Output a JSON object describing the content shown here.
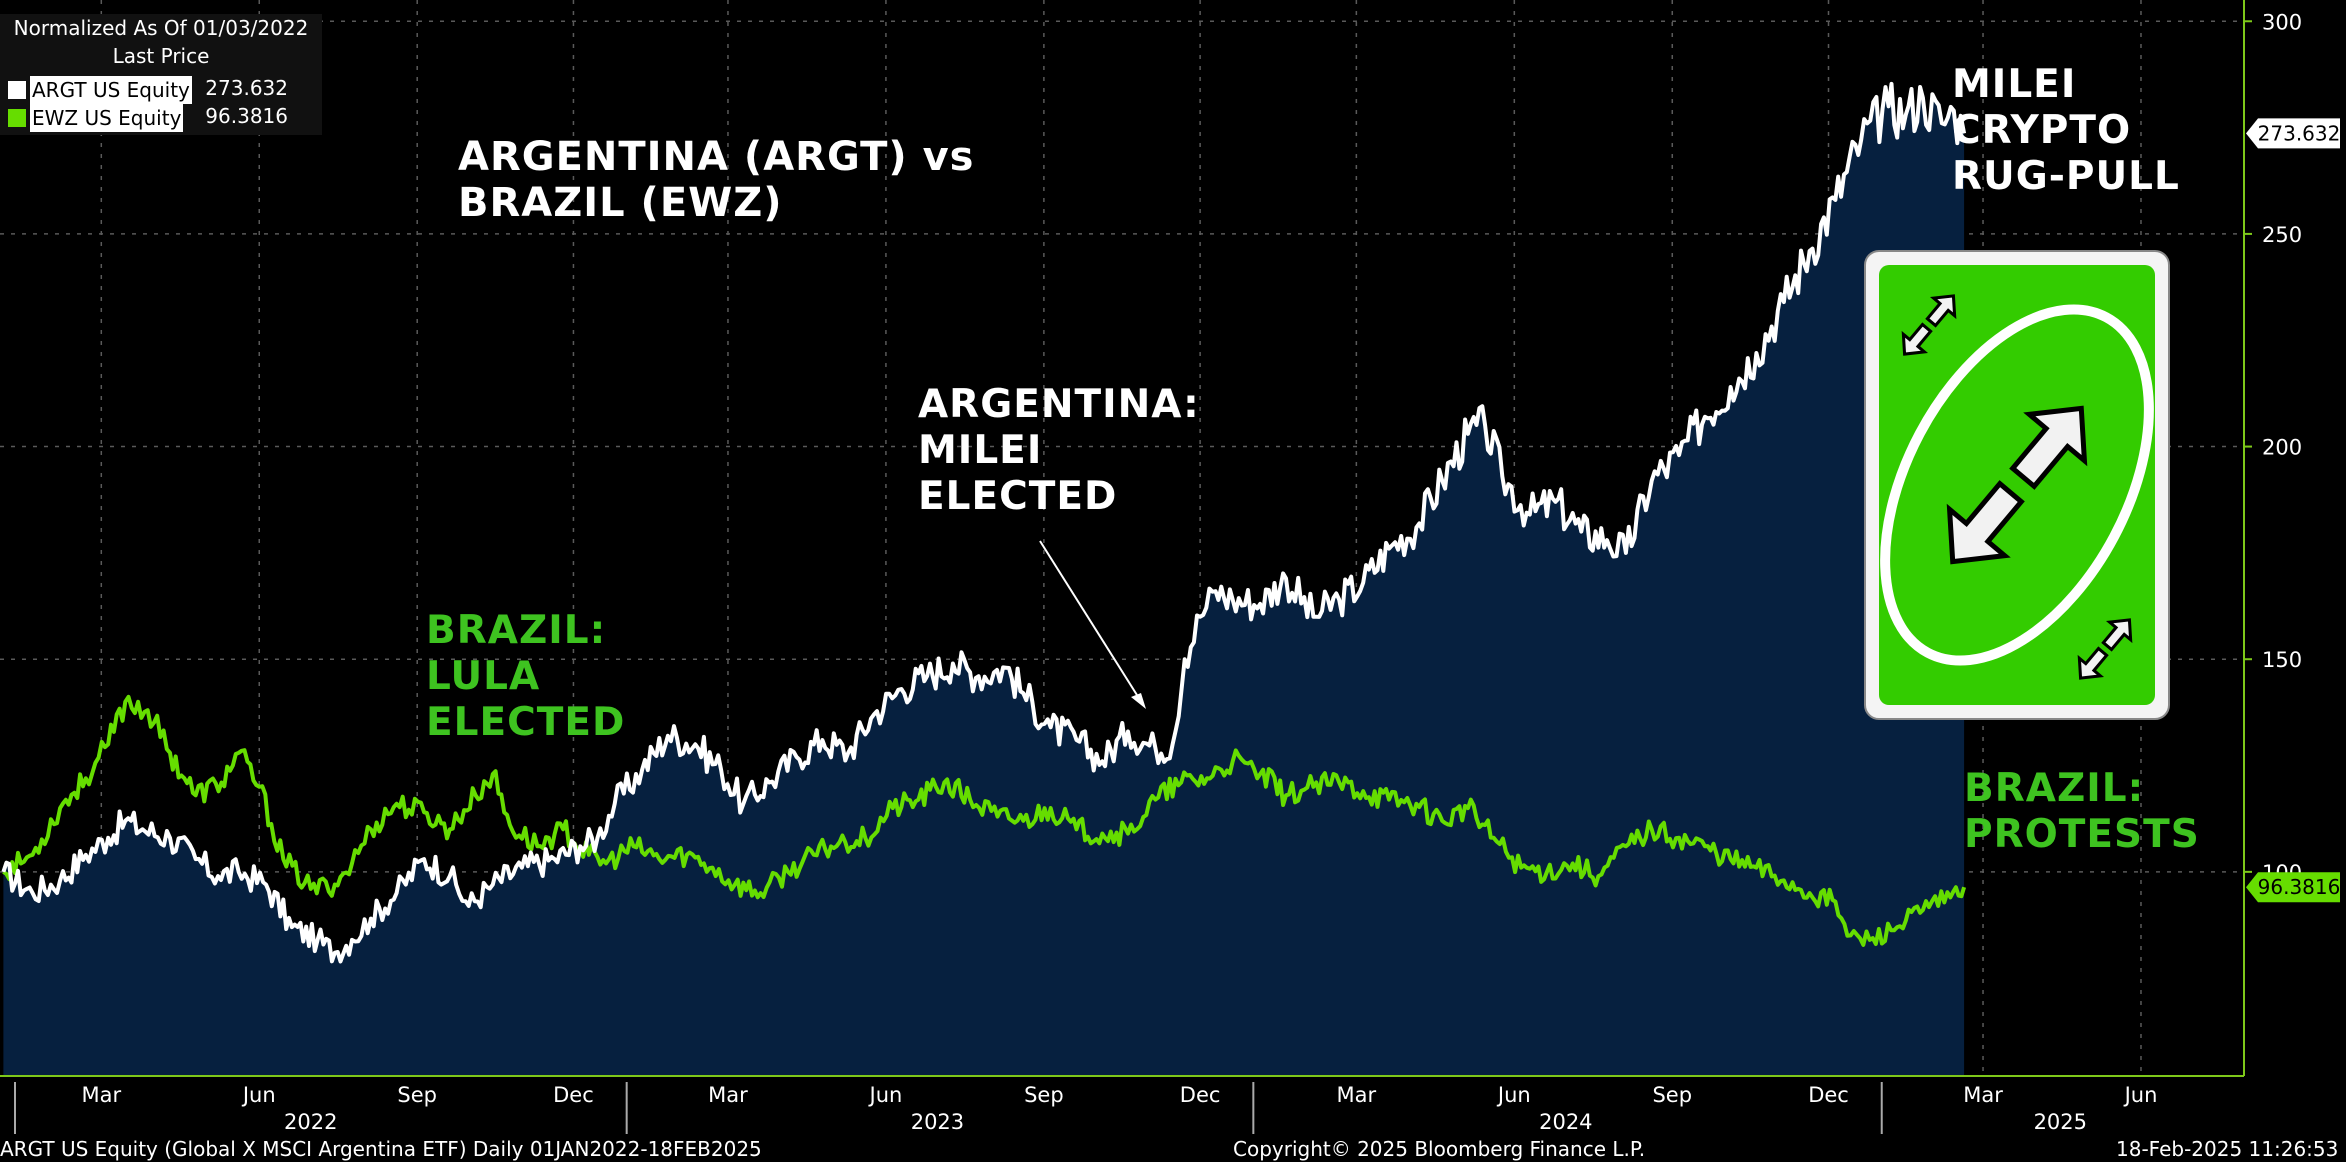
{
  "legend": {
    "header_line1": "Normalized As Of 01/03/2022",
    "header_line2": "Last Price",
    "series": [
      {
        "name": "ARGT US Equity",
        "value": "273.632",
        "color": "#ffffff"
      },
      {
        "name": "EWZ US Equity",
        "value": "96.3816",
        "color": "#66dd00"
      }
    ]
  },
  "title": "ARGENTINA (ARGT) vs\nBRAZIL (EWZ)",
  "annotations": {
    "milei_elected": "ARGENTINA:\nMILEI\nELECTED",
    "lula_elected": "BRAZIL:\nLULA\nELECTED",
    "rug_pull": "MILEI\nCRYPTO\nRUG-PULL",
    "protests": "BRAZIL:\nPROTESTS"
  },
  "card_icon": "uno-reverse-card-icon",
  "footer": {
    "left": "ARGT US Equity (Global X MSCI Argentina ETF)  Daily 01JAN2022-18FEB2025",
    "center": "Copyright© 2025 Bloomberg Finance L.P.",
    "right": "18-Feb-2025 11:26:53"
  },
  "chart_data": {
    "type": "line",
    "ylim": [
      52,
      305
    ],
    "yticks": [
      "300",
      "250",
      "200",
      "150",
      "100"
    ],
    "xlim": [
      "2022-01-01",
      "2025-07-31"
    ],
    "month_ticks": [
      {
        "label": "Mar",
        "date": "2022-03-01"
      },
      {
        "label": "Jun",
        "date": "2022-06-01"
      },
      {
        "label": "Sep",
        "date": "2022-09-01"
      },
      {
        "label": "Dec",
        "date": "2022-12-01"
      },
      {
        "label": "Mar",
        "date": "2023-03-01"
      },
      {
        "label": "Jun",
        "date": "2023-06-01"
      },
      {
        "label": "Sep",
        "date": "2023-09-01"
      },
      {
        "label": "Dec",
        "date": "2023-12-01"
      },
      {
        "label": "Mar",
        "date": "2024-03-01"
      },
      {
        "label": "Jun",
        "date": "2024-06-01"
      },
      {
        "label": "Sep",
        "date": "2024-09-01"
      },
      {
        "label": "Dec",
        "date": "2024-12-01"
      },
      {
        "label": "Mar",
        "date": "2025-03-01"
      },
      {
        "label": "Jun",
        "date": "2025-06-01"
      }
    ],
    "year_labels": [
      {
        "label": "2022",
        "date": "2022-07-01"
      },
      {
        "label": "2023",
        "date": "2023-07-01"
      },
      {
        "label": "2024",
        "date": "2024-07-01"
      },
      {
        "label": "2025",
        "date": "2025-04-15"
      }
    ],
    "last_value_tags": [
      "273.632",
      "96.3816"
    ],
    "series": [
      {
        "name": "ARGT US Equity",
        "color": "#ffffff",
        "area_fill": "#06203f",
        "points": [
          [
            "2022-01-03",
            100
          ],
          [
            "2022-01-20",
            95
          ],
          [
            "2022-02-05",
            98
          ],
          [
            "2022-02-20",
            104
          ],
          [
            "2022-03-05",
            108
          ],
          [
            "2022-03-15",
            112
          ],
          [
            "2022-03-25",
            110
          ],
          [
            "2022-04-10",
            108
          ],
          [
            "2022-04-25",
            103
          ],
          [
            "2022-05-08",
            99
          ],
          [
            "2022-05-20",
            100
          ],
          [
            "2022-06-05",
            97
          ],
          [
            "2022-06-20",
            87
          ],
          [
            "2022-07-05",
            84
          ],
          [
            "2022-07-15",
            81
          ],
          [
            "2022-07-25",
            84
          ],
          [
            "2022-08-05",
            89
          ],
          [
            "2022-08-20",
            95
          ],
          [
            "2022-09-05",
            103
          ],
          [
            "2022-09-20",
            99
          ],
          [
            "2022-10-01",
            92
          ],
          [
            "2022-10-15",
            97
          ],
          [
            "2022-11-01",
            101
          ],
          [
            "2022-11-20",
            103
          ],
          [
            "2022-12-05",
            106
          ],
          [
            "2022-12-15",
            108
          ],
          [
            "2022-12-25",
            116
          ],
          [
            "2023-01-10",
            124
          ],
          [
            "2023-01-25",
            132
          ],
          [
            "2023-02-10",
            130
          ],
          [
            "2023-02-25",
            124
          ],
          [
            "2023-03-10",
            116
          ],
          [
            "2023-03-25",
            121
          ],
          [
            "2023-04-10",
            127
          ],
          [
            "2023-04-25",
            131
          ],
          [
            "2023-05-10",
            128
          ],
          [
            "2023-05-25",
            137
          ],
          [
            "2023-06-10",
            143
          ],
          [
            "2023-06-25",
            146
          ],
          [
            "2023-07-10",
            149
          ],
          [
            "2023-07-25",
            146
          ],
          [
            "2023-08-10",
            148
          ],
          [
            "2023-08-20",
            142
          ],
          [
            "2023-09-05",
            134
          ],
          [
            "2023-09-20",
            131
          ],
          [
            "2023-10-05",
            126
          ],
          [
            "2023-10-20",
            133
          ],
          [
            "2023-11-05",
            129
          ],
          [
            "2023-11-15",
            130
          ],
          [
            "2023-11-22",
            150
          ],
          [
            "2023-12-01",
            160
          ],
          [
            "2023-12-10",
            166
          ],
          [
            "2023-12-20",
            164
          ],
          [
            "2024-01-05",
            163
          ],
          [
            "2024-01-20",
            169
          ],
          [
            "2024-02-05",
            160
          ],
          [
            "2024-02-20",
            164
          ],
          [
            "2024-03-05",
            168
          ],
          [
            "2024-03-20",
            176
          ],
          [
            "2024-04-05",
            181
          ],
          [
            "2024-04-20",
            192
          ],
          [
            "2024-05-05",
            203
          ],
          [
            "2024-05-15",
            205
          ],
          [
            "2024-05-25",
            193
          ],
          [
            "2024-06-10",
            184
          ],
          [
            "2024-06-25",
            187
          ],
          [
            "2024-07-10",
            180
          ],
          [
            "2024-07-25",
            178
          ],
          [
            "2024-08-05",
            175
          ],
          [
            "2024-08-20",
            192
          ],
          [
            "2024-09-05",
            198
          ],
          [
            "2024-09-20",
            207
          ],
          [
            "2024-10-05",
            214
          ],
          [
            "2024-10-20",
            222
          ],
          [
            "2024-11-05",
            234
          ],
          [
            "2024-11-20",
            246
          ],
          [
            "2024-12-05",
            258
          ],
          [
            "2024-12-20",
            272
          ],
          [
            "2025-01-05",
            280
          ],
          [
            "2025-01-15",
            278
          ],
          [
            "2025-01-25",
            282
          ],
          [
            "2025-02-05",
            276
          ],
          [
            "2025-02-12",
            279
          ],
          [
            "2025-02-18",
            273.632
          ]
        ]
      },
      {
        "name": "EWZ US Equity",
        "color": "#66dd00",
        "points": [
          [
            "2022-01-03",
            100
          ],
          [
            "2022-01-20",
            104
          ],
          [
            "2022-02-05",
            115
          ],
          [
            "2022-02-20",
            122
          ],
          [
            "2022-03-05",
            130
          ],
          [
            "2022-03-15",
            140
          ],
          [
            "2022-03-28",
            138
          ],
          [
            "2022-04-10",
            128
          ],
          [
            "2022-04-25",
            118
          ],
          [
            "2022-05-10",
            121
          ],
          [
            "2022-05-20",
            128
          ],
          [
            "2022-06-01",
            120
          ],
          [
            "2022-06-15",
            103
          ],
          [
            "2022-07-01",
            96
          ],
          [
            "2022-07-15",
            97
          ],
          [
            "2022-07-25",
            102
          ],
          [
            "2022-08-05",
            110
          ],
          [
            "2022-08-20",
            116
          ],
          [
            "2022-09-05",
            114
          ],
          [
            "2022-09-20",
            110
          ],
          [
            "2022-10-05",
            118
          ],
          [
            "2022-10-15",
            123
          ],
          [
            "2022-10-25",
            111
          ],
          [
            "2022-11-10",
            106
          ],
          [
            "2022-11-25",
            110
          ],
          [
            "2022-12-10",
            104
          ],
          [
            "2022-12-20",
            102
          ],
          [
            "2023-01-05",
            106
          ],
          [
            "2023-01-20",
            103
          ],
          [
            "2023-02-05",
            104
          ],
          [
            "2023-02-20",
            101
          ],
          [
            "2023-03-05",
            97
          ],
          [
            "2023-03-20",
            95
          ],
          [
            "2023-04-05",
            100
          ],
          [
            "2023-04-20",
            104
          ],
          [
            "2023-05-05",
            107
          ],
          [
            "2023-05-20",
            108
          ],
          [
            "2023-06-05",
            115
          ],
          [
            "2023-06-20",
            117
          ],
          [
            "2023-07-05",
            121
          ],
          [
            "2023-07-20",
            117
          ],
          [
            "2023-08-05",
            113
          ],
          [
            "2023-08-20",
            112
          ],
          [
            "2023-09-05",
            115
          ],
          [
            "2023-09-20",
            110
          ],
          [
            "2023-10-05",
            109
          ],
          [
            "2023-10-20",
            109
          ],
          [
            "2023-11-05",
            117
          ],
          [
            "2023-11-20",
            121
          ],
          [
            "2023-12-05",
            122
          ],
          [
            "2023-12-20",
            126
          ],
          [
            "2024-01-05",
            123
          ],
          [
            "2024-01-20",
            118
          ],
          [
            "2024-02-05",
            120
          ],
          [
            "2024-02-20",
            121
          ],
          [
            "2024-03-05",
            119
          ],
          [
            "2024-03-20",
            117
          ],
          [
            "2024-04-05",
            116
          ],
          [
            "2024-04-20",
            112
          ],
          [
            "2024-05-05",
            115
          ],
          [
            "2024-05-20",
            108
          ],
          [
            "2024-06-05",
            101
          ],
          [
            "2024-06-20",
            100
          ],
          [
            "2024-07-05",
            102
          ],
          [
            "2024-07-20",
            99
          ],
          [
            "2024-08-05",
            106
          ],
          [
            "2024-08-20",
            110
          ],
          [
            "2024-09-05",
            108
          ],
          [
            "2024-09-20",
            106
          ],
          [
            "2024-10-05",
            103
          ],
          [
            "2024-10-20",
            101
          ],
          [
            "2024-11-05",
            98
          ],
          [
            "2024-11-20",
            95
          ],
          [
            "2024-12-05",
            93
          ],
          [
            "2024-12-12",
            85
          ],
          [
            "2024-12-25",
            84
          ],
          [
            "2025-01-10",
            87
          ],
          [
            "2025-01-25",
            91
          ],
          [
            "2025-02-10",
            94
          ],
          [
            "2025-02-18",
            96.3816
          ]
        ]
      }
    ]
  }
}
